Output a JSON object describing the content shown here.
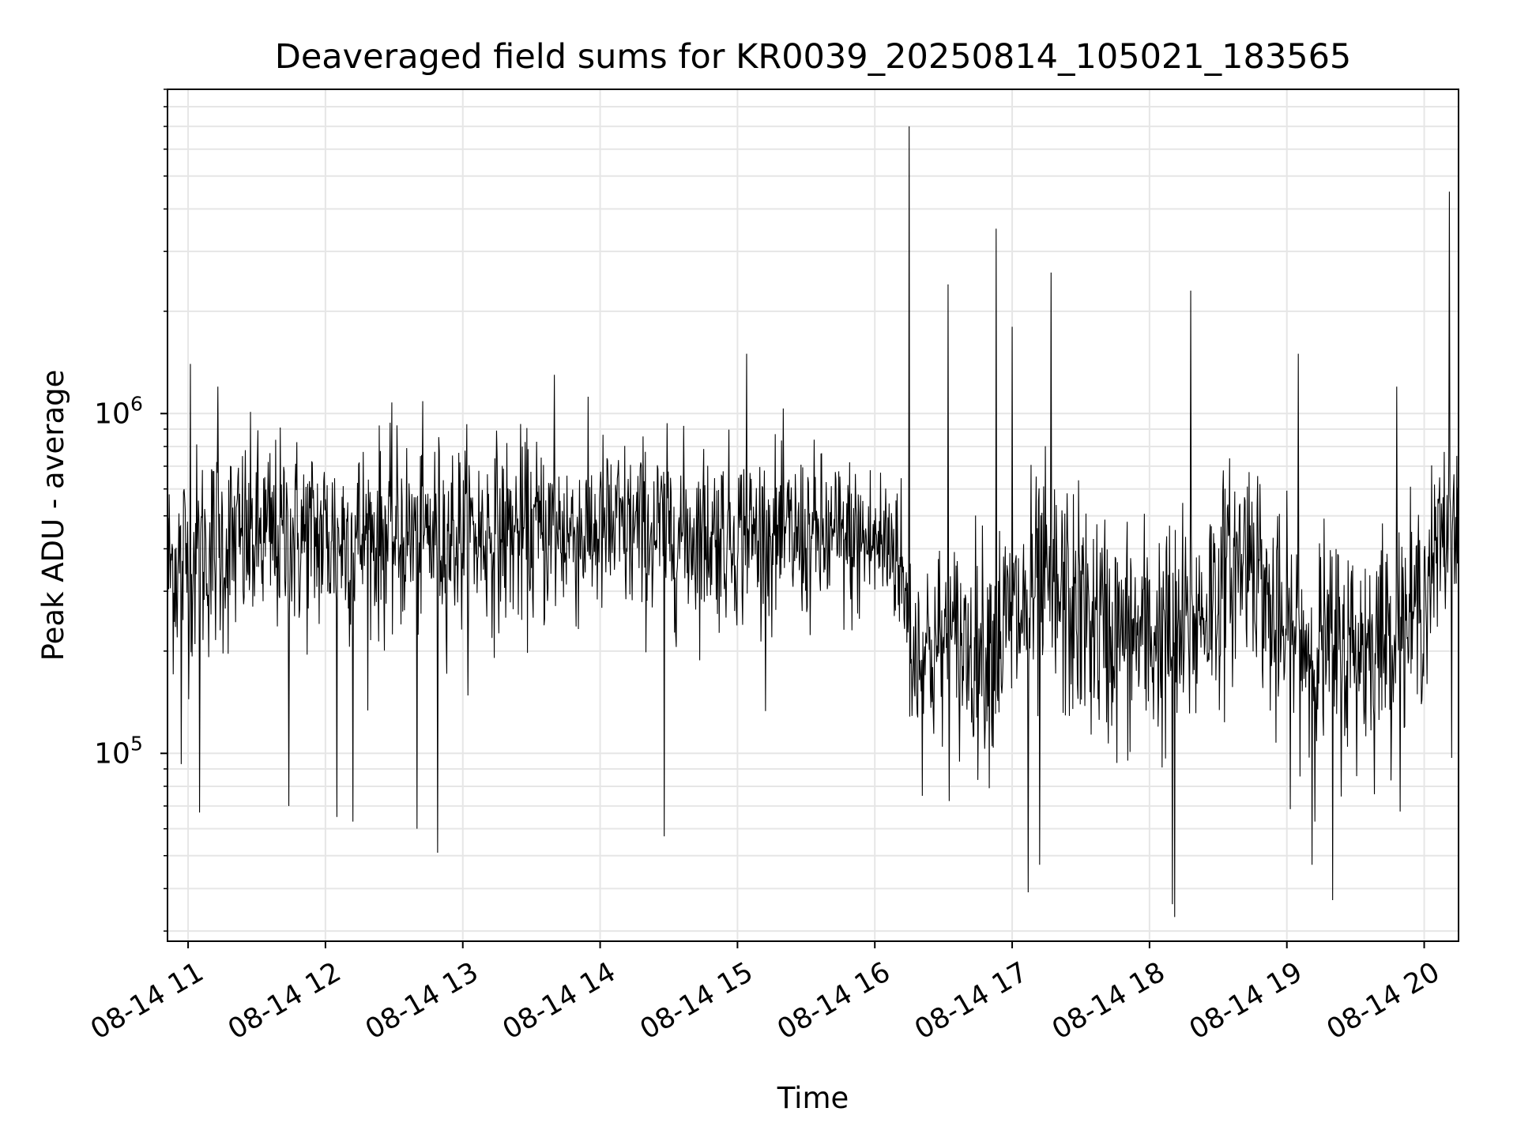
{
  "chart_data": {
    "type": "line",
    "title": "Deaveraged field sums for KR0039_20250814_105021_183565",
    "xlabel": "Time",
    "ylabel": "Peak ADU - average",
    "y_scale": "log",
    "ylim": [
      28000,
      9000000
    ],
    "y_major_ticks": [
      {
        "value": 100000,
        "base": "10",
        "exp": "5"
      },
      {
        "value": 1000000,
        "base": "10",
        "exp": "6"
      }
    ],
    "xlim": [
      "2025-08-14 10:51",
      "2025-08-14 20:15"
    ],
    "x_ticks": [
      {
        "time": "2025-08-14 11:00",
        "label": "08-14 11"
      },
      {
        "time": "2025-08-14 12:00",
        "label": "08-14 12"
      },
      {
        "time": "2025-08-14 13:00",
        "label": "08-14 13"
      },
      {
        "time": "2025-08-14 14:00",
        "label": "08-14 14"
      },
      {
        "time": "2025-08-14 15:00",
        "label": "08-14 15"
      },
      {
        "time": "2025-08-14 16:00",
        "label": "08-14 16"
      },
      {
        "time": "2025-08-14 17:00",
        "label": "08-14 17"
      },
      {
        "time": "2025-08-14 18:00",
        "label": "08-14 18"
      },
      {
        "time": "2025-08-14 19:00",
        "label": "08-14 19"
      },
      {
        "time": "2025-08-14 20:00",
        "label": "08-14 20"
      }
    ],
    "grid": true,
    "line_color": "#000000",
    "grid_color": "#e6e6e6",
    "sampling_interval_seconds": 15,
    "series": [
      {
        "trend": [
          {
            "t": "2025-08-14 10:51",
            "median": 350000,
            "low": 180000,
            "high": 800000
          },
          {
            "t": "2025-08-14 11:00",
            "median": 380000,
            "low": 180000,
            "high": 850000
          },
          {
            "t": "2025-08-14 11:30",
            "median": 430000,
            "low": 200000,
            "high": 850000
          },
          {
            "t": "2025-08-14 12:00",
            "median": 430000,
            "low": 200000,
            "high": 850000
          },
          {
            "t": "2025-08-14 13:00",
            "median": 440000,
            "low": 220000,
            "high": 850000
          },
          {
            "t": "2025-08-14 14:00",
            "median": 450000,
            "low": 230000,
            "high": 850000
          },
          {
            "t": "2025-08-14 15:00",
            "median": 440000,
            "low": 230000,
            "high": 800000
          },
          {
            "t": "2025-08-14 16:10",
            "median": 410000,
            "low": 230000,
            "high": 750000
          },
          {
            "t": "2025-08-14 16:16",
            "median": 200000,
            "low": 100000,
            "high": 420000
          },
          {
            "t": "2025-08-14 16:50",
            "median": 210000,
            "low": 100000,
            "high": 480000
          },
          {
            "t": "2025-08-14 17:15",
            "median": 300000,
            "low": 120000,
            "high": 700000
          },
          {
            "t": "2025-08-14 17:45",
            "median": 220000,
            "low": 100000,
            "high": 500000
          },
          {
            "t": "2025-08-14 18:15",
            "median": 220000,
            "low": 90000,
            "high": 480000
          },
          {
            "t": "2025-08-14 18:45",
            "median": 420000,
            "low": 200000,
            "high": 850000
          },
          {
            "t": "2025-08-14 18:55",
            "median": 220000,
            "low": 100000,
            "high": 500000
          },
          {
            "t": "2025-08-14 19:30",
            "median": 200000,
            "low": 90000,
            "high": 450000
          },
          {
            "t": "2025-08-14 19:55",
            "median": 250000,
            "low": 130000,
            "high": 550000
          },
          {
            "t": "2025-08-14 20:15",
            "median": 550000,
            "low": 280000,
            "high": 950000
          }
        ],
        "spikes": [
          {
            "t": "2025-08-14 11:01",
            "value": 1400000
          },
          {
            "t": "2025-08-14 10:57",
            "value": 93000
          },
          {
            "t": "2025-08-14 11:05",
            "value": 67000
          },
          {
            "t": "2025-08-14 11:13",
            "value": 1200000
          },
          {
            "t": "2025-08-14 11:44",
            "value": 70000
          },
          {
            "t": "2025-08-14 12:05",
            "value": 65000
          },
          {
            "t": "2025-08-14 12:12",
            "value": 63000
          },
          {
            "t": "2025-08-14 12:40",
            "value": 60000
          },
          {
            "t": "2025-08-14 12:49",
            "value": 51000
          },
          {
            "t": "2025-08-14 13:40",
            "value": 1300000
          },
          {
            "t": "2025-08-14 14:28",
            "value": 57000
          },
          {
            "t": "2025-08-14 15:04",
            "value": 1500000
          },
          {
            "t": "2025-08-14 16:15",
            "value": 7000000
          },
          {
            "t": "2025-08-14 16:32",
            "value": 2400000
          },
          {
            "t": "2025-08-14 16:53",
            "value": 3500000
          },
          {
            "t": "2025-08-14 17:00",
            "value": 1800000
          },
          {
            "t": "2025-08-14 17:07",
            "value": 39000
          },
          {
            "t": "2025-08-14 17:12",
            "value": 47000
          },
          {
            "t": "2025-08-14 17:17",
            "value": 2600000
          },
          {
            "t": "2025-08-14 18:10",
            "value": 36000
          },
          {
            "t": "2025-08-14 18:11",
            "value": 33000
          },
          {
            "t": "2025-08-14 18:18",
            "value": 2300000
          },
          {
            "t": "2025-08-14 19:05",
            "value": 1500000
          },
          {
            "t": "2025-08-14 19:11",
            "value": 47000
          },
          {
            "t": "2025-08-14 19:20",
            "value": 37000
          },
          {
            "t": "2025-08-14 19:48",
            "value": 1200000
          },
          {
            "t": "2025-08-14 20:11",
            "value": 4500000
          },
          {
            "t": "2025-08-14 20:12",
            "value": 97000
          }
        ]
      }
    ]
  }
}
